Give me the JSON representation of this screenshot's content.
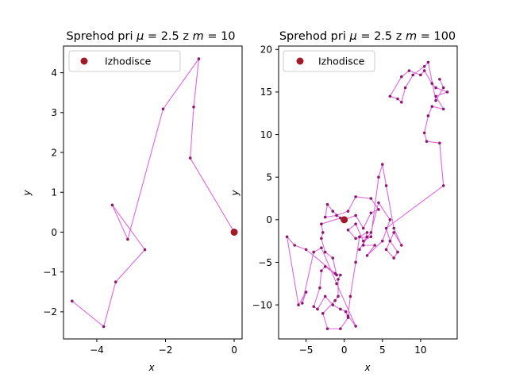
{
  "chart_data": [
    {
      "type": "line",
      "title": "Sprehod pri μ = 2.5 z m = 10",
      "title_parts": {
        "prefix": "Sprehod pri ",
        "mu_sym": "μ",
        "mu_val": " = 2.5 z ",
        "m_sym": "m",
        "m_val": " = 10"
      },
      "xlabel": "x",
      "ylabel": "y",
      "xlim": [
        -4.97,
        0.23
      ],
      "ylim": [
        -2.68,
        4.67
      ],
      "xticks": [
        -4,
        -2,
        0
      ],
      "yticks": [
        -2,
        -1,
        0,
        1,
        2,
        3,
        4
      ],
      "legend": {
        "label": "Izhodisce",
        "position": "top-left"
      },
      "origin": [
        0,
        0
      ],
      "line_color": "#e066e0",
      "marker_color": "#8b1a6b",
      "origin_color": "#a11a28",
      "points": [
        [
          0,
          0
        ],
        [
          -1.28,
          1.86
        ],
        [
          -1.18,
          3.14
        ],
        [
          -1.03,
          4.35
        ],
        [
          -2.07,
          3.09
        ],
        [
          -3.1,
          -0.18
        ],
        [
          -3.55,
          0.68
        ],
        [
          -2.6,
          -0.44
        ],
        [
          -3.45,
          -1.25
        ],
        [
          -3.8,
          -2.37
        ],
        [
          -4.72,
          -1.73
        ]
      ]
    },
    {
      "type": "line",
      "title": "Sprehod pri μ = 2.5 z m = 100",
      "title_parts": {
        "prefix": "Sprehod pri ",
        "mu_sym": "μ",
        "mu_val": " = 2.5 z ",
        "m_sym": "m",
        "m_val": " = 100"
      },
      "xlabel": "x",
      "ylabel": "y",
      "xlim": [
        -8.6,
        14.8
      ],
      "ylim": [
        -14.0,
        20.4
      ],
      "xticks": [
        -5,
        0,
        5,
        10
      ],
      "yticks": [
        -10,
        -5,
        0,
        5,
        10,
        15,
        20
      ],
      "legend": {
        "label": "Izhodisce",
        "position": "top-left"
      },
      "origin": [
        0,
        0
      ],
      "line_color": "#e066e0",
      "marker_color": "#8b1a6b",
      "origin_color": "#a11a28",
      "points": [
        [
          0,
          0
        ],
        [
          1.5,
          0.5
        ],
        [
          2.5,
          -1.0
        ],
        [
          3.5,
          0.8
        ],
        [
          4.5,
          1.2
        ],
        [
          3.5,
          2.5
        ],
        [
          1.5,
          2.7
        ],
        [
          0.5,
          1.0
        ],
        [
          -1.0,
          0.5
        ],
        [
          -2.5,
          0.3
        ],
        [
          -2.2,
          1.8
        ],
        [
          -1.5,
          1.0
        ],
        [
          -0.5,
          0.2
        ],
        [
          -3.0,
          -0.5
        ],
        [
          -2.8,
          -1.5
        ],
        [
          -3.0,
          -2.2
        ],
        [
          -2.5,
          -3.8
        ],
        [
          -1.5,
          -4.5
        ],
        [
          -1.0,
          -6.5
        ],
        [
          -2.5,
          -5.5
        ],
        [
          -3.0,
          -6.0
        ],
        [
          -3.2,
          -8.0
        ],
        [
          -4.0,
          -10.2
        ],
        [
          -3.5,
          -10.5
        ],
        [
          -2.5,
          -9.0
        ],
        [
          -1.5,
          -10.0
        ],
        [
          -0.5,
          -10.5
        ],
        [
          0.2,
          -10.8
        ],
        [
          0.5,
          -11.5
        ],
        [
          -0.5,
          -12.8
        ],
        [
          -2.2,
          -12.8
        ],
        [
          -2.8,
          -11.0
        ],
        [
          -1.2,
          -9.5
        ],
        [
          -0.8,
          -9.0
        ],
        [
          -0.8,
          -7.0
        ],
        [
          -0.5,
          -6.5
        ],
        [
          -1.2,
          -6.3
        ],
        [
          -5.0,
          -3.5
        ],
        [
          -6.5,
          -3.0
        ],
        [
          -7.5,
          -2.0
        ],
        [
          -6.0,
          -10.0
        ],
        [
          -5.0,
          -8.5
        ],
        [
          -5.5,
          -9.8
        ],
        [
          -4.0,
          -3.8
        ],
        [
          -3.0,
          -3.3
        ],
        [
          -1.0,
          -7.5
        ],
        [
          1.5,
          -12.5
        ],
        [
          0.5,
          -11.3
        ],
        [
          0.8,
          -9.0
        ],
        [
          1.5,
          -5.0
        ],
        [
          2.0,
          -2.0
        ],
        [
          3.0,
          -1.5
        ],
        [
          2.5,
          -3.0
        ],
        [
          4.0,
          -3.0
        ],
        [
          3.0,
          -4.2
        ],
        [
          5.0,
          -2.5
        ],
        [
          6.0,
          0.0
        ],
        [
          4.5,
          2.0
        ],
        [
          3.5,
          -1.5
        ],
        [
          2.0,
          -3.5
        ],
        [
          3.0,
          -2.0
        ],
        [
          1.5,
          -2.2
        ],
        [
          0.5,
          -1.2
        ],
        [
          1.5,
          -0.5
        ],
        [
          2.5,
          -2.5
        ],
        [
          3.5,
          -2.0
        ],
        [
          4.5,
          5.0
        ],
        [
          5.0,
          6.5
        ],
        [
          5.5,
          4.0
        ],
        [
          6.5,
          -1.0
        ],
        [
          7.5,
          -3.0
        ],
        [
          6.5,
          -1.5
        ],
        [
          5.5,
          -3.5
        ],
        [
          6.5,
          -4.5
        ],
        [
          7.0,
          -3.8
        ],
        [
          6.0,
          -2.5
        ],
        [
          5.5,
          -1.0
        ],
        [
          13.0,
          4.0
        ],
        [
          12.5,
          9.0
        ],
        [
          10.8,
          9.2
        ],
        [
          10.5,
          10.2
        ],
        [
          11.0,
          12.2
        ],
        [
          11.5,
          13.3
        ],
        [
          13.0,
          13.0
        ],
        [
          12.0,
          14.5
        ],
        [
          13.5,
          15.0
        ],
        [
          12.0,
          15.5
        ],
        [
          11.5,
          16.0
        ],
        [
          10.5,
          17.5
        ],
        [
          10.0,
          17.0
        ],
        [
          8.5,
          17.5
        ],
        [
          7.5,
          16.8
        ],
        [
          6.0,
          14.5
        ],
        [
          7.0,
          14.2
        ],
        [
          7.5,
          13.8
        ],
        [
          8.0,
          15.5
        ],
        [
          9.0,
          17.0
        ],
        [
          10.5,
          18.0
        ],
        [
          11.0,
          18.5
        ],
        [
          12.0,
          14.0
        ],
        [
          13.0,
          15.5
        ],
        [
          12.5,
          16.5
        ]
      ]
    }
  ]
}
